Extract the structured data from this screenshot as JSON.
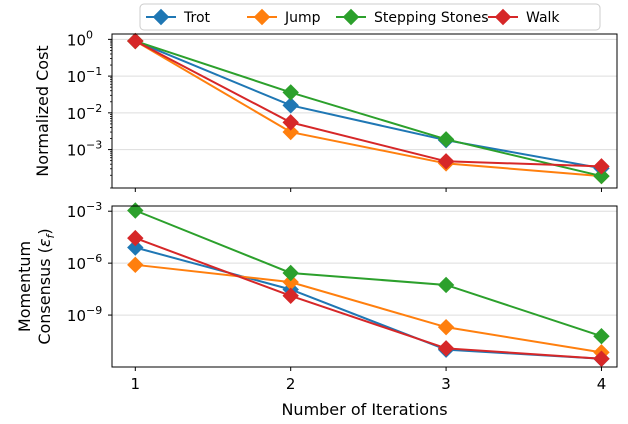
{
  "legend": {
    "placement": "top-center",
    "entries": [
      "Trot",
      "Jump",
      "Stepping Stones",
      "Walk"
    ]
  },
  "colors": {
    "Trot": "#1f77b4",
    "Jump": "#ff7f0e",
    "Stepping Stones": "#2ca02c",
    "Walk": "#d62728",
    "grid": "#dddddd"
  },
  "chart_data": [
    {
      "type": "line",
      "title": "",
      "xlabel": "",
      "ylabel": "Normalized Cost",
      "yscale": "log",
      "x": [
        1,
        2,
        3,
        4
      ],
      "xlim": [
        0.85,
        4.1
      ],
      "ylim": [
        9e-05,
        1.4
      ],
      "grid": "horizontal",
      "yticks": [
        {
          "value": 1,
          "base": "10",
          "exp": "0"
        },
        {
          "value": 0.1,
          "base": "10",
          "exp": "−1"
        },
        {
          "value": 0.01,
          "base": "10",
          "exp": "−2"
        },
        {
          "value": 0.001,
          "base": "10",
          "exp": "−3"
        }
      ],
      "series": [
        {
          "name": "Trot",
          "values": [
            0.9,
            0.016,
            0.0018,
            0.00031
          ]
        },
        {
          "name": "Jump",
          "values": [
            0.9,
            0.003,
            0.00042,
            0.00019
          ]
        },
        {
          "name": "Stepping Stones",
          "values": [
            0.9,
            0.036,
            0.0019,
            0.00019
          ]
        },
        {
          "name": "Walk",
          "values": [
            0.9,
            0.0055,
            0.00048,
            0.00035
          ]
        }
      ]
    },
    {
      "type": "line",
      "title": "",
      "xlabel": "Number of Iterations",
      "ylabel_lines": [
        "Momentum",
        "Consensus ("
      ],
      "ylabel_symbol": "ε",
      "ylabel_subscript": "f",
      "ylabel_close": ")",
      "yscale": "log",
      "x": [
        1,
        2,
        3,
        4
      ],
      "xticks": [
        "1",
        "2",
        "3",
        "4"
      ],
      "xlim": [
        0.85,
        4.1
      ],
      "ylim": [
        1e-12,
        0.002
      ],
      "grid": "horizontal",
      "yticks": [
        {
          "value": 0.001,
          "base": "10",
          "exp": "−3"
        },
        {
          "value": 1e-06,
          "base": "10",
          "exp": "−6"
        },
        {
          "value": 1e-09,
          "base": "10",
          "exp": "−9"
        }
      ],
      "series": [
        {
          "name": "Trot",
          "values": [
            8e-06,
            3e-08,
            1e-11,
            3e-12
          ]
        },
        {
          "name": "Jump",
          "values": [
            8e-07,
            8e-08,
            2e-10,
            7e-12
          ]
        },
        {
          "name": "Stepping Stones",
          "values": [
            0.0011,
            2.7e-07,
            5.5e-08,
            6e-11
          ]
        },
        {
          "name": "Walk",
          "values": [
            2.8e-05,
            1.3e-08,
            1.2e-11,
            3e-12
          ]
        }
      ]
    }
  ]
}
